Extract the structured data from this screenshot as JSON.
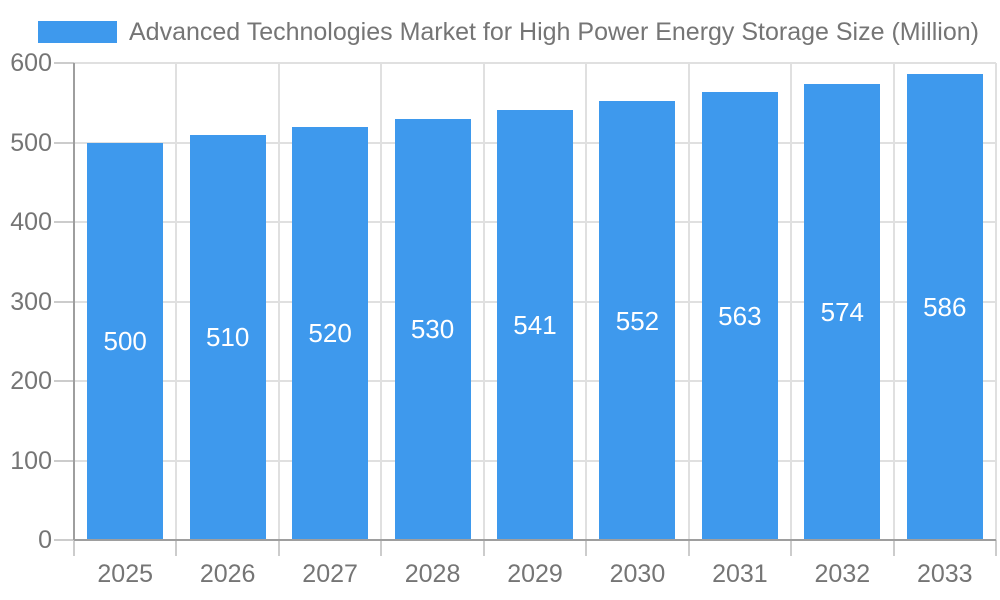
{
  "legend": {
    "label": "Advanced Technologies Market for High Power Energy Storage Size (Million)"
  },
  "colors": {
    "bar": "#3E99ED",
    "text": "#757575",
    "grid": "#E0E0E0",
    "axis": "#9E9E9E",
    "tick": "#CCCCCC",
    "value_label": "#FFFFFF",
    "background": "#FFFFFF"
  },
  "chart_data": {
    "type": "bar",
    "title": "Advanced Technologies Market for High Power Energy Storage Size (Million)",
    "categories": [
      "2025",
      "2026",
      "2027",
      "2028",
      "2029",
      "2030",
      "2031",
      "2032",
      "2033"
    ],
    "values": [
      500,
      510,
      520,
      530,
      541,
      552,
      563,
      574,
      586
    ],
    "xlabel": "",
    "ylabel": "",
    "ylim": [
      0,
      600
    ],
    "yticks": [
      0,
      100,
      200,
      300,
      400,
      500,
      600
    ],
    "grid": true,
    "legend_position": "top-left",
    "value_labels": "white, centered inside bars"
  }
}
